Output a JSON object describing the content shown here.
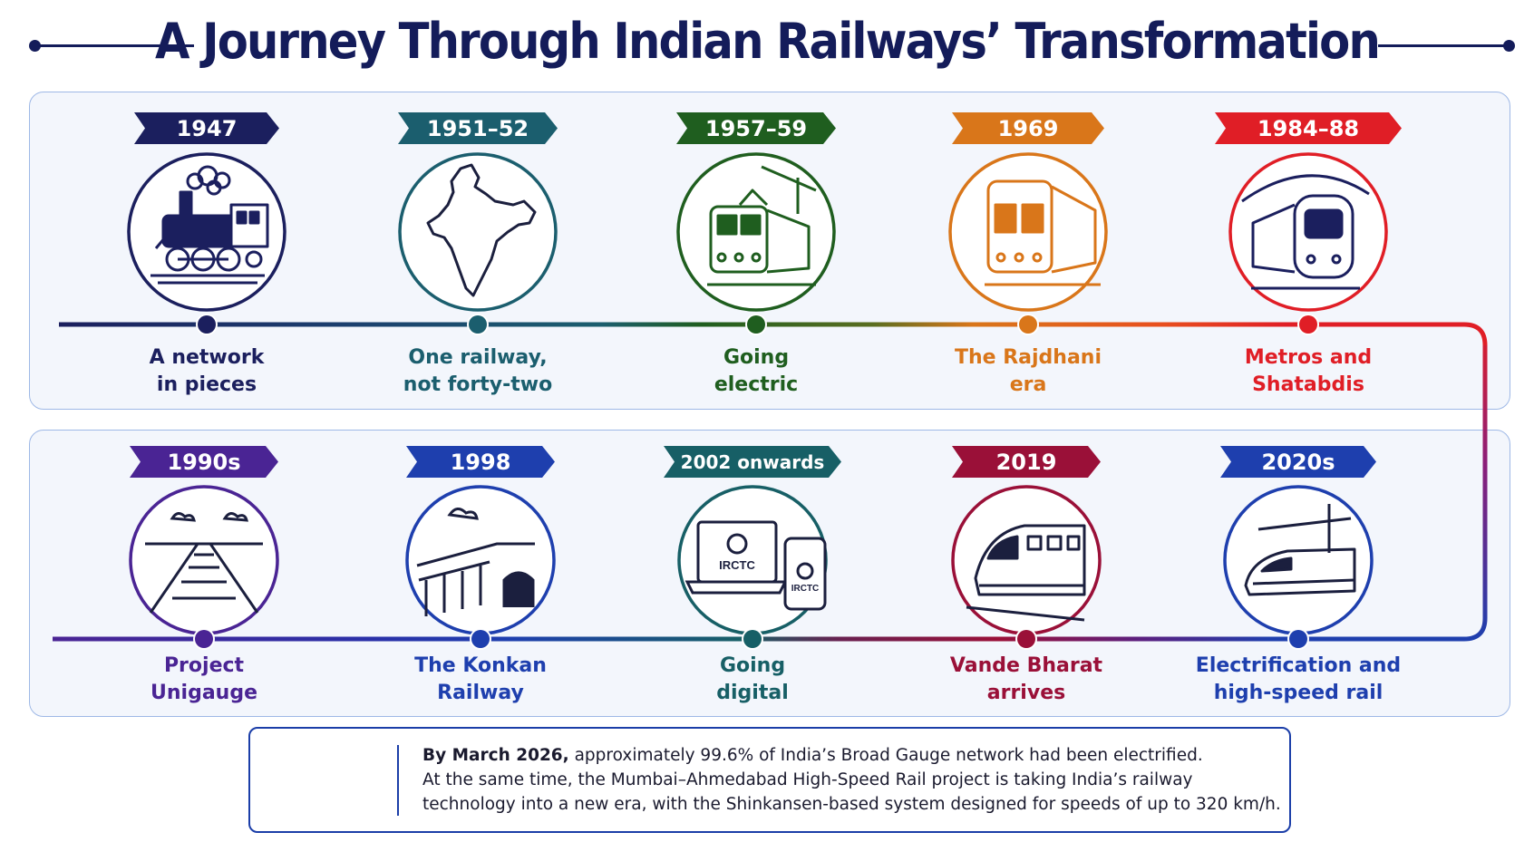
{
  "title": "A Journey Through Indian Railways’ Transformation",
  "timeline": [
    {
      "year": "1947",
      "caption_line1": "A network",
      "caption_line2": "in pieces",
      "color": "#1b1f5e",
      "icon": "steam-locomotive-icon"
    },
    {
      "year": "1951–52",
      "caption_line1": "One railway,",
      "caption_line2": "not forty-two",
      "color": "#1b5e6e",
      "icon": "india-map-icon"
    },
    {
      "year": "1957–59",
      "caption_line1": "Going",
      "caption_line2": "electric",
      "color": "#1f5e1f",
      "icon": "electric-train-icon"
    },
    {
      "year": "1969",
      "caption_line1": "The Rajdhani",
      "caption_line2": "era",
      "color": "#d9761a",
      "icon": "rajdhani-train-icon"
    },
    {
      "year": "1984–88",
      "caption_line1": "Metros and",
      "caption_line2": "Shatabdis",
      "color": "#e01e26",
      "icon": "metro-train-icon"
    },
    {
      "year": "1990s",
      "caption_line1": "Project",
      "caption_line2": "Unigauge",
      "color": "#4a2494",
      "icon": "railway-track-icon"
    },
    {
      "year": "1998",
      "caption_line1": "The Konkan",
      "caption_line2": "Railway",
      "color": "#1e3fae",
      "icon": "bridge-tunnel-icon"
    },
    {
      "year": "2002 onwards",
      "caption_line1": "Going",
      "caption_line2": "digital",
      "color": "#175f66",
      "icon": "laptop-phone-icon",
      "laptop_logo": "IRCTC",
      "phone_logo": "IRCTC"
    },
    {
      "year": "2019",
      "caption_line1": "Vande Bharat",
      "caption_line2": "arrives",
      "color": "#9a1038",
      "icon": "vande-bharat-train-icon"
    },
    {
      "year": "2020s",
      "caption_line1": "Electrification and",
      "caption_line2": "high-speed rail",
      "color": "#1e3fae",
      "icon": "bullet-train-icon"
    }
  ],
  "note": {
    "lead": "By March 2026,",
    "line1": " approximately 99.6% of India’s Broad Gauge network had been electrified.",
    "line2": "At the same time, the Mumbai–Ahmedabad High-Speed Rail project is taking India’s railway",
    "line3": "technology into a new era, with the Shinkansen-based system designed for speeds of up to 320 km/h.",
    "icon": "lightning-bullet-train-icon",
    "color": "#1b3ea8"
  }
}
